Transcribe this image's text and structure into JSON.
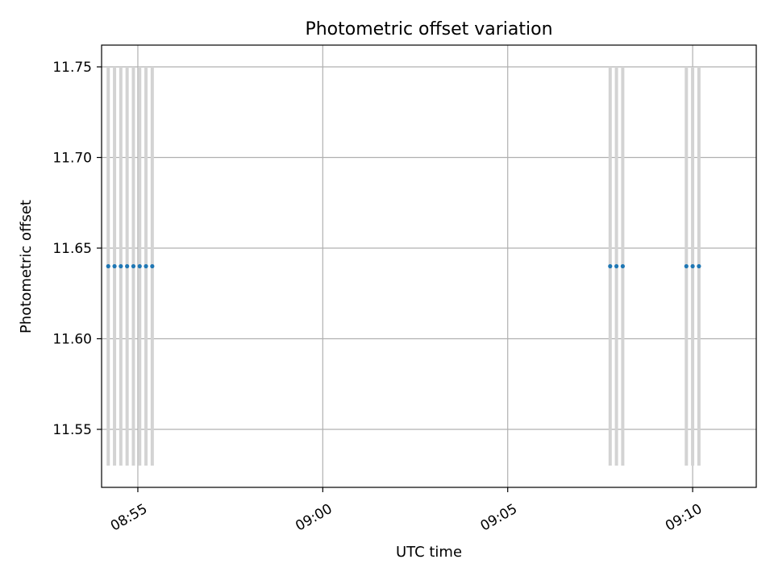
{
  "chart_data": {
    "type": "scatter",
    "title": "Photometric offset variation",
    "xlabel": "UTC time",
    "ylabel": "Photometric offset",
    "x_ticks": [
      "08:55",
      "09:00",
      "09:05",
      "09:10"
    ],
    "x_tick_values_min": [
      535,
      540,
      545,
      550
    ],
    "y_ticks": [
      "11.55",
      "11.60",
      "11.65",
      "11.70",
      "11.75"
    ],
    "y_tick_values": [
      11.55,
      11.6,
      11.65,
      11.7,
      11.75
    ],
    "xlim_min": [
      534.02,
      551.72
    ],
    "ylim": [
      11.518,
      11.762
    ],
    "grid": true,
    "marker_color": "#1f77b4",
    "errorbar_color": "#d3d3d3",
    "series": [
      {
        "x_min": [
          534.2,
          534.37,
          534.54,
          534.71,
          534.88,
          535.05,
          535.22,
          535.39,
          547.77,
          547.94,
          548.11,
          549.83,
          550.0,
          550.17
        ],
        "y": [
          11.64,
          11.64,
          11.64,
          11.64,
          11.64,
          11.64,
          11.64,
          11.64,
          11.64,
          11.64,
          11.64,
          11.64,
          11.64,
          11.64
        ],
        "y_err": [
          0.11,
          0.11,
          0.11,
          0.11,
          0.11,
          0.11,
          0.11,
          0.11,
          0.11,
          0.11,
          0.11,
          0.11,
          0.11,
          0.11
        ]
      }
    ]
  }
}
